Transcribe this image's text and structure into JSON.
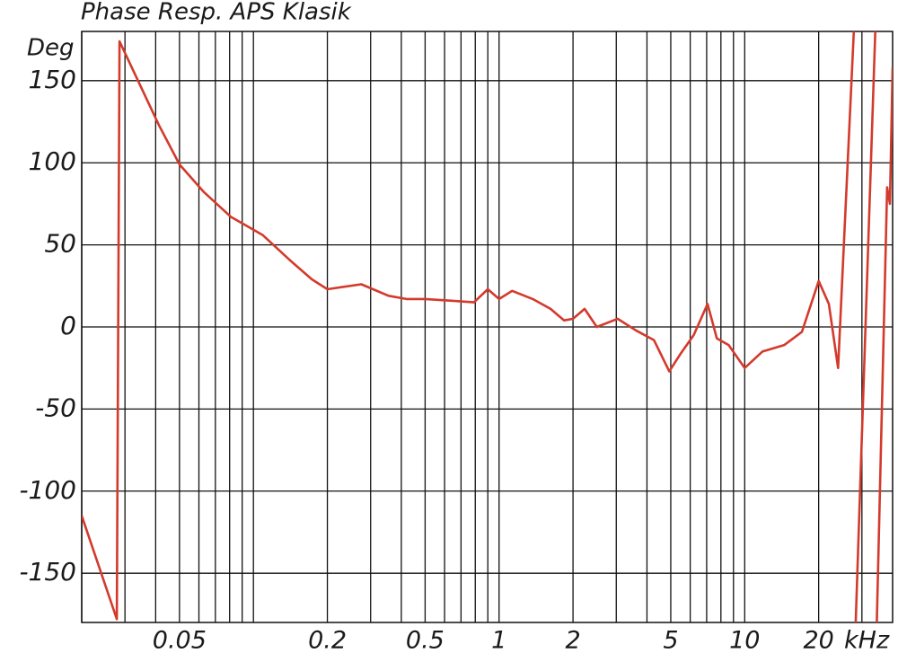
{
  "chart_data": {
    "type": "line",
    "title": "Phase Resp. APS Klasik",
    "y_label": "Deg",
    "x_label": "kHz",
    "xscale": "log",
    "xlim": [
      0.02,
      40
    ],
    "ylim": [
      -180,
      180
    ],
    "xticks": [
      0.05,
      0.2,
      0.5,
      1,
      2,
      5,
      10,
      20
    ],
    "x_minor_ticks": [
      0.02,
      0.03,
      0.04,
      0.06,
      0.07,
      0.08,
      0.09,
      0.1,
      0.3,
      0.4,
      0.6,
      0.7,
      0.8,
      0.9,
      3,
      4,
      6,
      7,
      8,
      9,
      30
    ],
    "yticks": [
      -150,
      -100,
      -50,
      0,
      50,
      100,
      150
    ],
    "grid": true,
    "series": [
      {
        "name": "Phase",
        "color": "#d33a2c",
        "x": [
          0.02,
          0.0278,
          0.0285,
          0.032,
          0.0412,
          0.05,
          0.063,
          0.081,
          0.109,
          0.14,
          0.173,
          0.2,
          0.275,
          0.355,
          0.42,
          0.5,
          0.64,
          0.79,
          0.9,
          1,
          1.13,
          1.37,
          1.62,
          1.84,
          2,
          2.23,
          2.5,
          3.04,
          3.6,
          4.27,
          4.93,
          5.5,
          6.2,
          7.06,
          7.7,
          8.6,
          10,
          11.8,
          14.5,
          17.1,
          20,
          22,
          24,
          27.8,
          null,
          28.3,
          34,
          null,
          34.5,
          38,
          39,
          40
        ],
        "values": [
          -115,
          -178,
          174,
          158,
          123,
          99,
          82,
          67,
          56,
          41,
          29,
          23,
          26,
          19,
          17,
          17,
          16,
          15,
          23,
          17,
          22,
          17,
          11,
          4,
          5,
          11,
          0,
          5,
          -2,
          -8,
          -27,
          -16,
          -5,
          14,
          -7,
          -11,
          -25,
          -15,
          -11,
          -3,
          28,
          14,
          -25,
          180,
          null,
          -180,
          180,
          null,
          -180,
          85,
          75,
          158
        ]
      }
    ]
  }
}
